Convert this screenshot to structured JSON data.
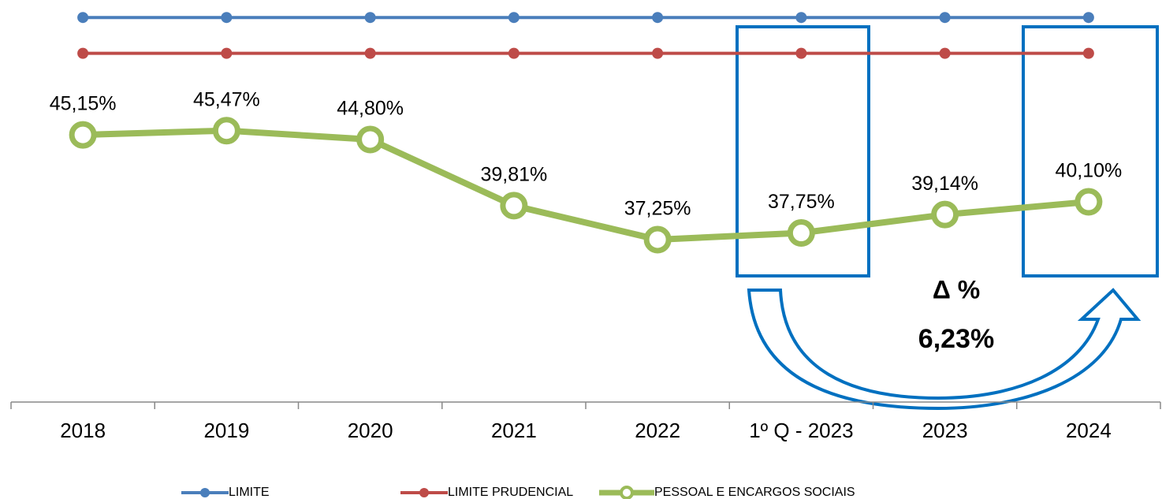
{
  "chart_data": {
    "type": "line",
    "categories": [
      "2018",
      "2019",
      "2020",
      "2021",
      "2022",
      "1º Q - 2023",
      "2023",
      "2024"
    ],
    "series": [
      {
        "name": "LIMITE",
        "color": "#4a7ebb",
        "values": [
          54,
          54,
          54,
          54,
          54,
          54,
          54,
          54
        ]
      },
      {
        "name": "LIMITE PRUDENCIAL",
        "color": "#be4b48",
        "values": [
          51.3,
          51.3,
          51.3,
          51.3,
          51.3,
          51.3,
          51.3,
          51.3
        ]
      },
      {
        "name": "PESSOAL E ENCARGOS SOCIAIS",
        "color": "#9bbb59",
        "values": [
          45.15,
          45.47,
          44.8,
          39.81,
          37.25,
          37.75,
          39.14,
          40.1
        ],
        "value_labels": [
          "45,15%",
          "45,47%",
          "44,80%",
          "39,81%",
          "37,25%",
          "37,75%",
          "39,14%",
          "40,10%"
        ]
      }
    ],
    "ylim": [
      25,
      55
    ],
    "legend": "bottom",
    "annotations": [
      "Δ %",
      "6,23%"
    ]
  }
}
